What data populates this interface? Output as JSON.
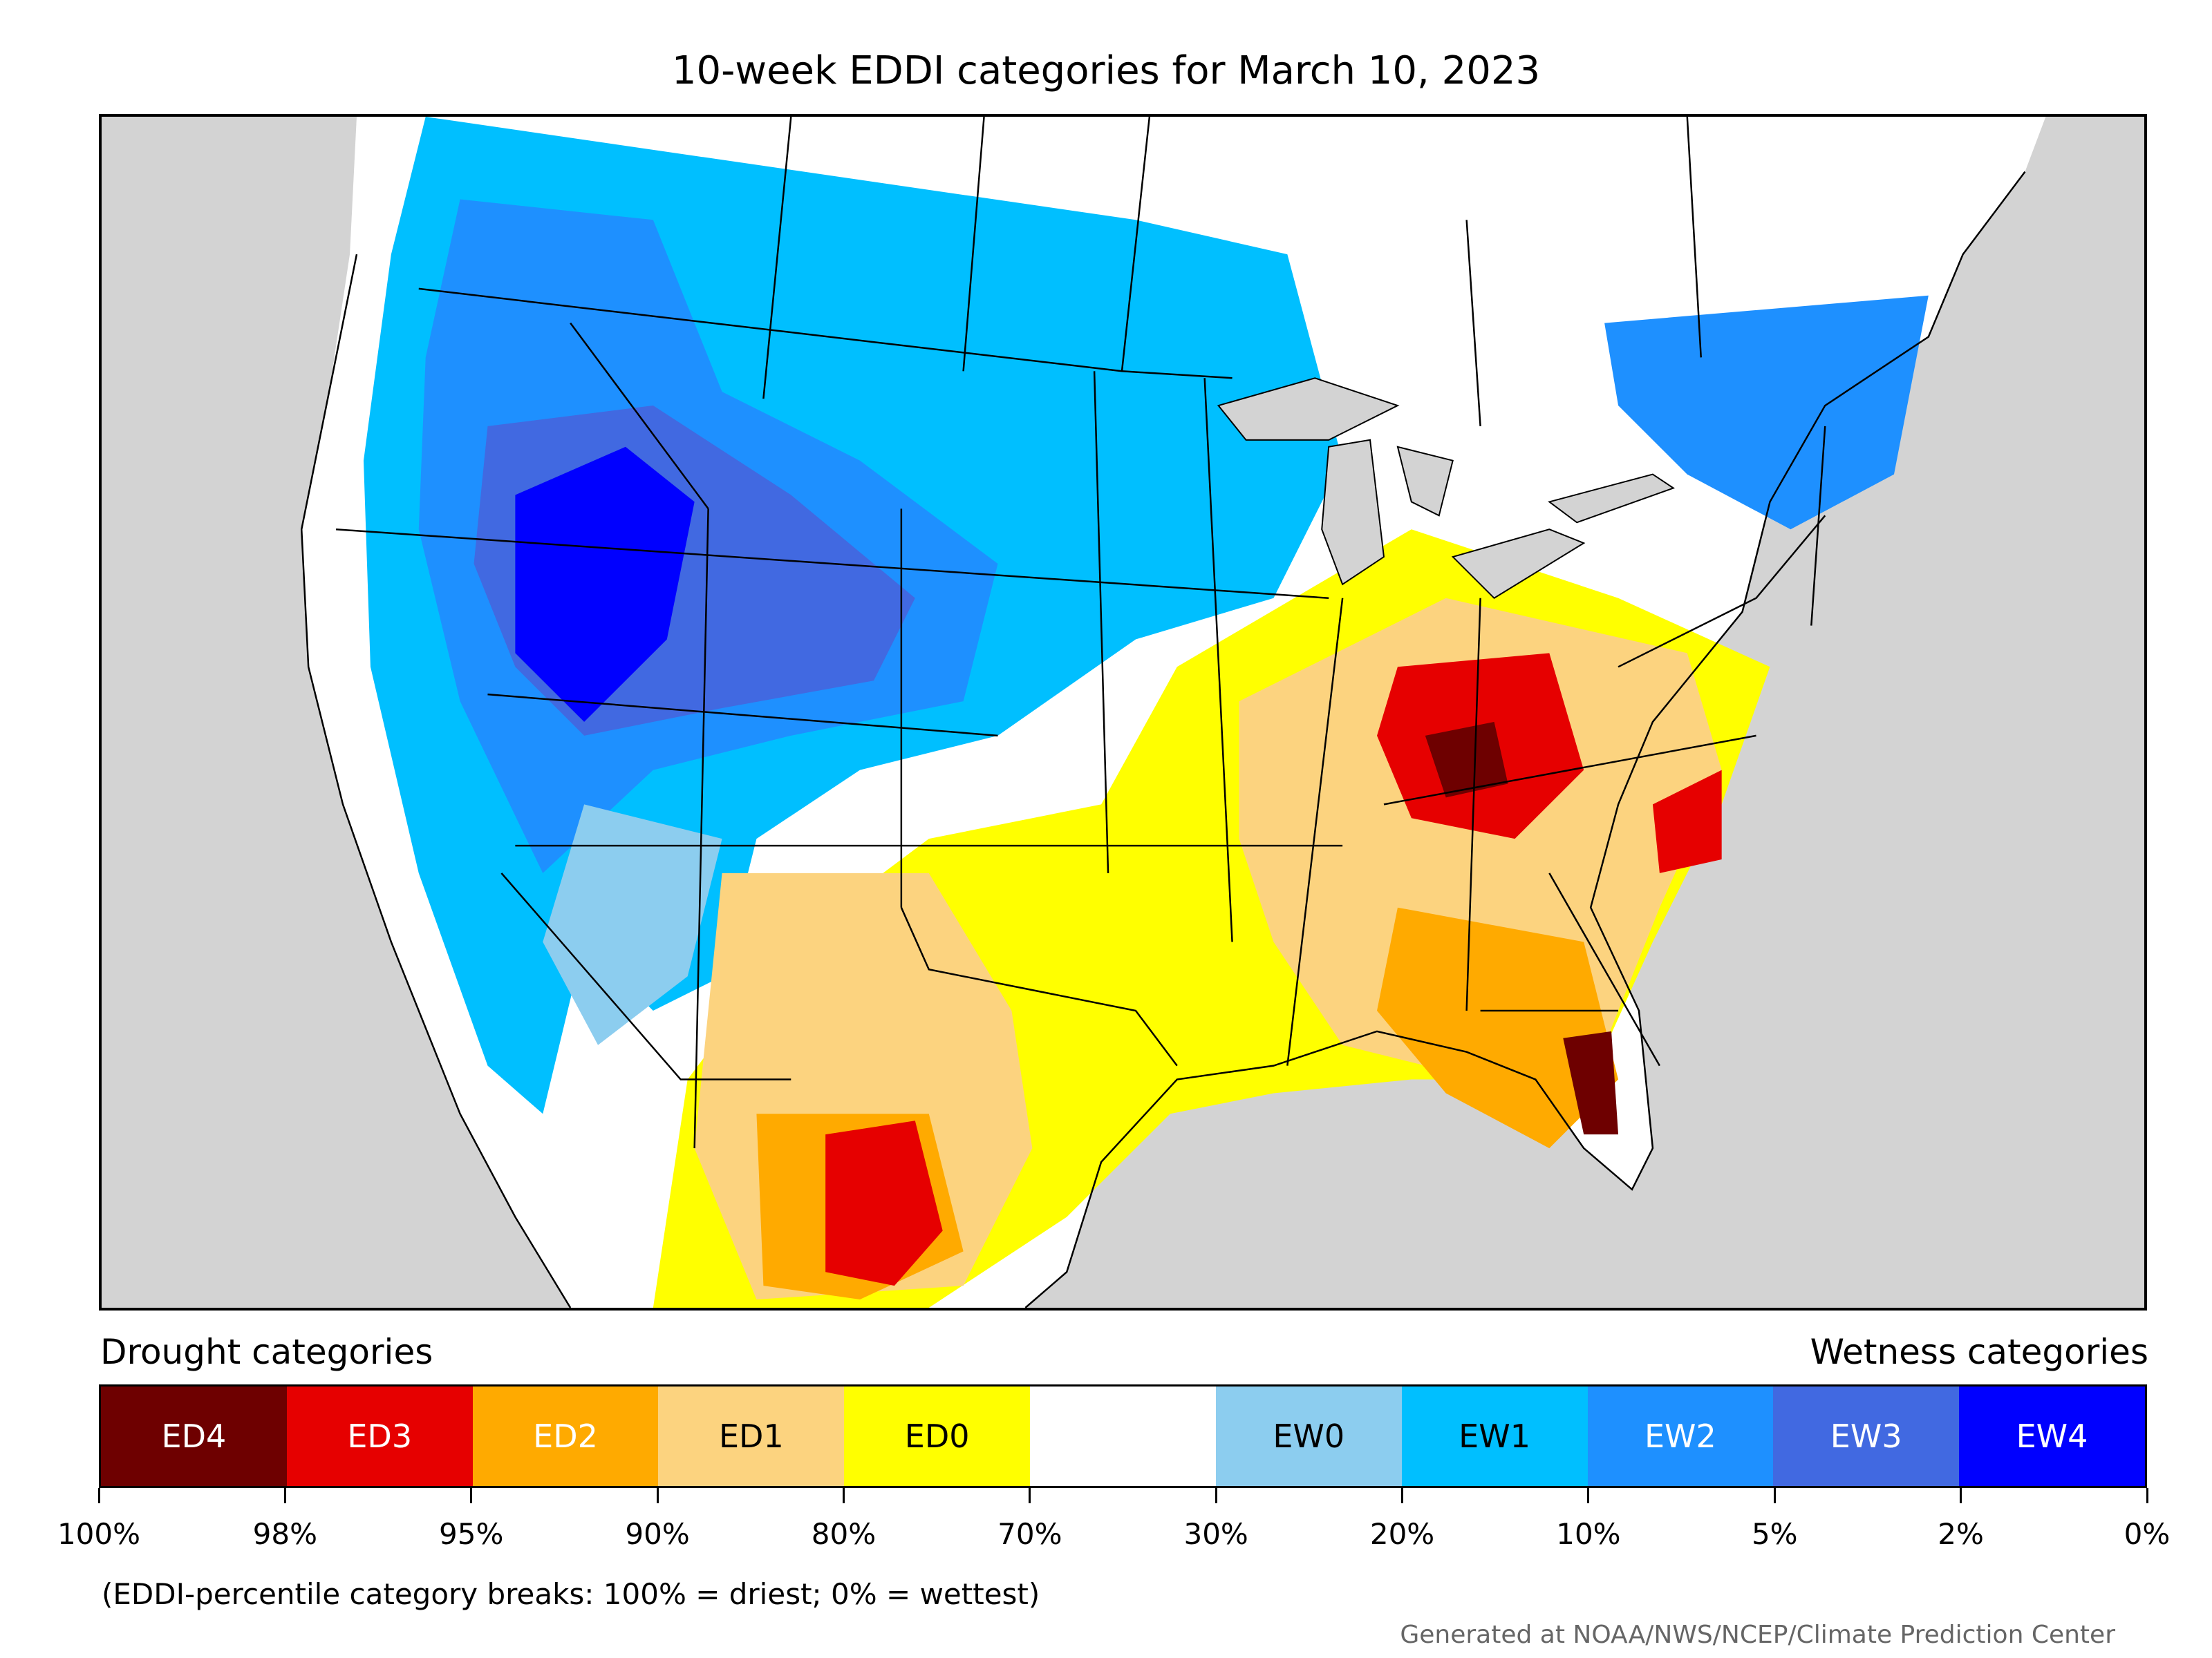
{
  "title": "10-week EDDI categories for March 10, 2023",
  "legend": {
    "drought_label": "Drought categories",
    "wetness_label": "Wetness categories",
    "categories": [
      {
        "label": "ED4",
        "color": "#6e0000",
        "text_color": "#ffffff"
      },
      {
        "label": "ED3",
        "color": "#e60000",
        "text_color": "#ffffff"
      },
      {
        "label": "ED2",
        "color": "#ffaa00",
        "text_color": "#ffffff"
      },
      {
        "label": "ED1",
        "color": "#fcd37f",
        "text_color": "#000000"
      },
      {
        "label": "ED0",
        "color": "#ffff00",
        "text_color": "#000000"
      },
      {
        "label": "",
        "color": "#ffffff",
        "text_color": "#000000"
      },
      {
        "label": "EW0",
        "color": "#8ccdef",
        "text_color": "#000000"
      },
      {
        "label": "EW1",
        "color": "#00bfff",
        "text_color": "#000000"
      },
      {
        "label": "EW2",
        "color": "#1e90ff",
        "text_color": "#ffffff"
      },
      {
        "label": "EW3",
        "color": "#4169e1",
        "text_color": "#ffffff"
      },
      {
        "label": "EW4",
        "color": "#0000ff",
        "text_color": "#ffffff"
      }
    ],
    "ticks": [
      "100%",
      "98%",
      "95%",
      "90%",
      "80%",
      "70%",
      "30%",
      "20%",
      "10%",
      "5%",
      "2%",
      "0%"
    ]
  },
  "note": "(EDDI-percentile category breaks: 100% = driest; 0% = wettest)",
  "credit": "Generated at NOAA/NWS/NCEP/Climate Prediction Center"
}
